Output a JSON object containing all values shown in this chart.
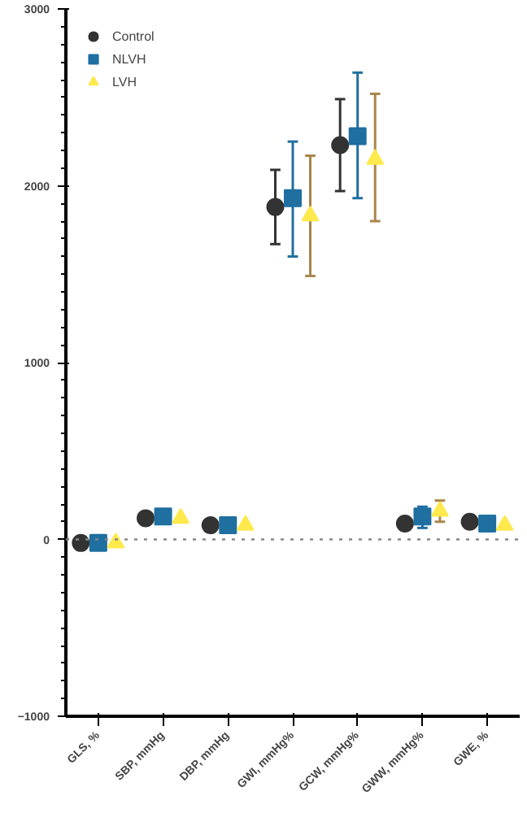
{
  "chart_data": {
    "type": "scatter",
    "categories": [
      "GLS, %",
      "SBP, mmHg",
      "DBP, mmHg",
      "GWI, mmHg%",
      "GCW, mmHg%",
      "GWW, mmHg%",
      "GWE, %"
    ],
    "series": [
      {
        "name": "Control",
        "color": "#333333",
        "marker": "circle",
        "values": [
          -20,
          120,
          80,
          1880,
          2230,
          90,
          100
        ],
        "errors": [
          null,
          null,
          null,
          [
            1670,
            2090
          ],
          [
            1970,
            2490
          ],
          null,
          null
        ]
      },
      {
        "name": "NLVH",
        "color": "#1f6fa0",
        "marker": "square",
        "values": [
          -20,
          130,
          80,
          1930,
          2280,
          130,
          90
        ],
        "errors": [
          null,
          null,
          null,
          [
            1600,
            2250
          ],
          [
            1930,
            2640
          ],
          [
            65,
            185
          ],
          null
        ]
      },
      {
        "name": "LVH",
        "color": "#ffe94d",
        "marker": "triangle",
        "values": [
          -20,
          120,
          80,
          1830,
          2150,
          160,
          80
        ],
        "errors": [
          null,
          null,
          null,
          [
            1490,
            2170
          ],
          [
            1800,
            2520
          ],
          [
            100,
            220
          ],
          null
        ]
      }
    ],
    "ylim": [
      -1000,
      3000
    ],
    "yticks": [
      -1000,
      0,
      1000,
      2000,
      3000
    ],
    "ref_lines": [
      {
        "axis": "y",
        "value": 0,
        "line_style": "dotted",
        "color": "#888888"
      }
    ],
    "grid": false,
    "legend": "top left"
  }
}
